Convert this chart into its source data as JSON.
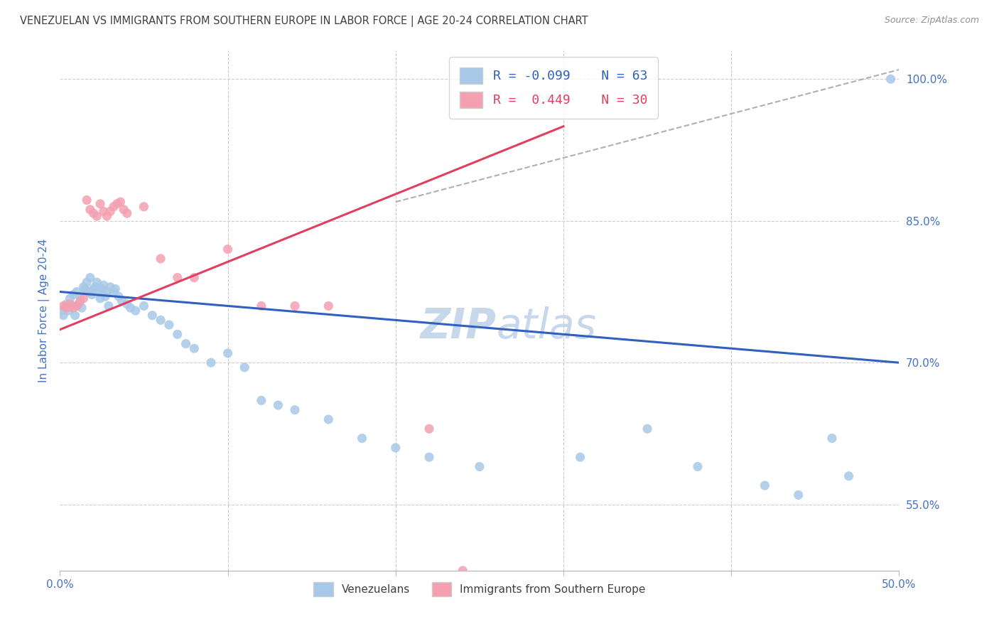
{
  "title": "VENEZUELAN VS IMMIGRANTS FROM SOUTHERN EUROPE IN LABOR FORCE | AGE 20-24 CORRELATION CHART",
  "source": "Source: ZipAtlas.com",
  "ylabel": "In Labor Force | Age 20-24",
  "xlim": [
    0.0,
    0.5
  ],
  "ylim": [
    0.48,
    1.03
  ],
  "yticks": [
    0.55,
    0.7,
    0.85,
    1.0
  ],
  "ytick_labels": [
    "55.0%",
    "70.0%",
    "85.0%",
    "100.0%"
  ],
  "xticks": [
    0.0,
    0.1,
    0.2,
    0.3,
    0.4,
    0.5
  ],
  "xtick_labels": [
    "0.0%",
    "",
    "",
    "",
    "",
    "50.0%"
  ],
  "legend_blue_r": "-0.099",
  "legend_blue_n": "63",
  "legend_pink_r": "0.449",
  "legend_pink_n": "30",
  "blue_color": "#a8c8e8",
  "pink_color": "#f4a0b0",
  "blue_line_color": "#3060c0",
  "pink_line_color": "#e04060",
  "trend_line_color": "#b0b0b0",
  "grid_color": "#cccccc",
  "axis_color": "#4472c4",
  "title_color": "#404040",
  "source_color": "#909090",
  "watermark_color": "#c8d8ec",
  "blue_scatter_x": [
    0.001,
    0.002,
    0.003,
    0.004,
    0.005,
    0.006,
    0.007,
    0.008,
    0.009,
    0.01,
    0.011,
    0.012,
    0.013,
    0.014,
    0.015,
    0.016,
    0.017,
    0.018,
    0.019,
    0.02,
    0.021,
    0.022,
    0.023,
    0.024,
    0.025,
    0.026,
    0.027,
    0.028,
    0.029,
    0.03,
    0.032,
    0.033,
    0.035,
    0.037,
    0.04,
    0.042,
    0.045,
    0.05,
    0.055,
    0.06,
    0.065,
    0.07,
    0.075,
    0.08,
    0.09,
    0.1,
    0.11,
    0.12,
    0.13,
    0.14,
    0.16,
    0.18,
    0.2,
    0.22,
    0.25,
    0.31,
    0.35,
    0.38,
    0.42,
    0.44,
    0.46,
    0.47,
    0.495
  ],
  "blue_scatter_y": [
    0.755,
    0.75,
    0.758,
    0.762,
    0.755,
    0.768,
    0.76,
    0.772,
    0.75,
    0.775,
    0.762,
    0.77,
    0.758,
    0.78,
    0.778,
    0.785,
    0.775,
    0.79,
    0.772,
    0.778,
    0.78,
    0.785,
    0.775,
    0.768,
    0.778,
    0.782,
    0.77,
    0.775,
    0.76,
    0.78,
    0.775,
    0.778,
    0.77,
    0.765,
    0.762,
    0.758,
    0.755,
    0.76,
    0.75,
    0.745,
    0.74,
    0.73,
    0.72,
    0.715,
    0.7,
    0.71,
    0.695,
    0.66,
    0.655,
    0.65,
    0.64,
    0.62,
    0.61,
    0.6,
    0.59,
    0.6,
    0.63,
    0.59,
    0.57,
    0.56,
    0.62,
    0.58,
    1.0
  ],
  "pink_scatter_x": [
    0.002,
    0.004,
    0.006,
    0.008,
    0.01,
    0.012,
    0.014,
    0.016,
    0.018,
    0.02,
    0.022,
    0.024,
    0.026,
    0.028,
    0.03,
    0.032,
    0.034,
    0.036,
    0.038,
    0.04,
    0.05,
    0.06,
    0.07,
    0.08,
    0.1,
    0.12,
    0.14,
    0.16,
    0.22,
    0.24
  ],
  "pink_scatter_y": [
    0.76,
    0.758,
    0.762,
    0.758,
    0.76,
    0.765,
    0.768,
    0.872,
    0.862,
    0.858,
    0.855,
    0.868,
    0.86,
    0.855,
    0.86,
    0.865,
    0.868,
    0.87,
    0.862,
    0.858,
    0.865,
    0.81,
    0.79,
    0.79,
    0.82,
    0.76,
    0.76,
    0.76,
    0.63,
    0.48
  ],
  "blue_trend_x0": 0.0,
  "blue_trend_x1": 0.5,
  "blue_trend_y0": 0.775,
  "blue_trend_y1": 0.7,
  "pink_trend_x0": 0.0,
  "pink_trend_x1": 0.3,
  "pink_trend_y0": 0.735,
  "pink_trend_y1": 0.95,
  "dashed_trend_x0": 0.2,
  "dashed_trend_x1": 0.5,
  "dashed_trend_y0": 0.87,
  "dashed_trend_y1": 1.01
}
